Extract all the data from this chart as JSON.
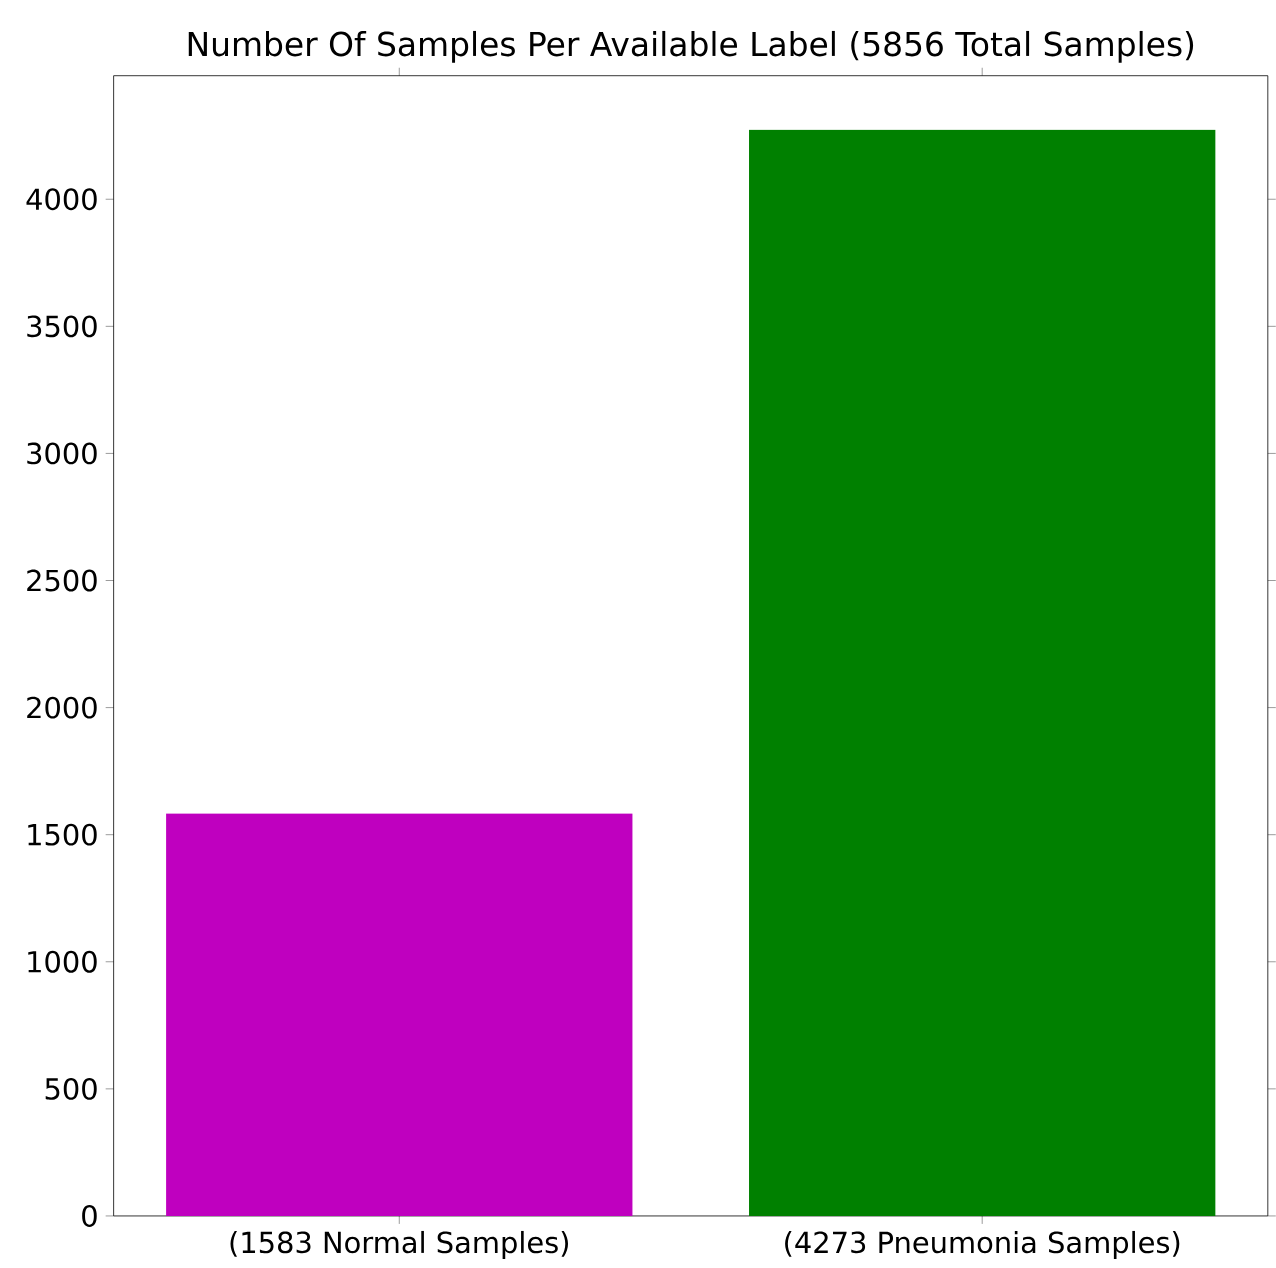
{
  "chart_data": {
    "type": "bar",
    "title": "Number Of Samples Per Available Label (5856 Total Samples)",
    "categories": [
      "(1583 Normal Samples)",
      "(4273 Pneumonia Samples)"
    ],
    "values": [
      1583,
      4273
    ],
    "colors": [
      "#bf00bf",
      "#008000"
    ],
    "ylim": [
      0,
      4486
    ],
    "yticks": [
      0,
      500,
      1000,
      1500,
      2000,
      2500,
      3000,
      3500,
      4000
    ]
  }
}
